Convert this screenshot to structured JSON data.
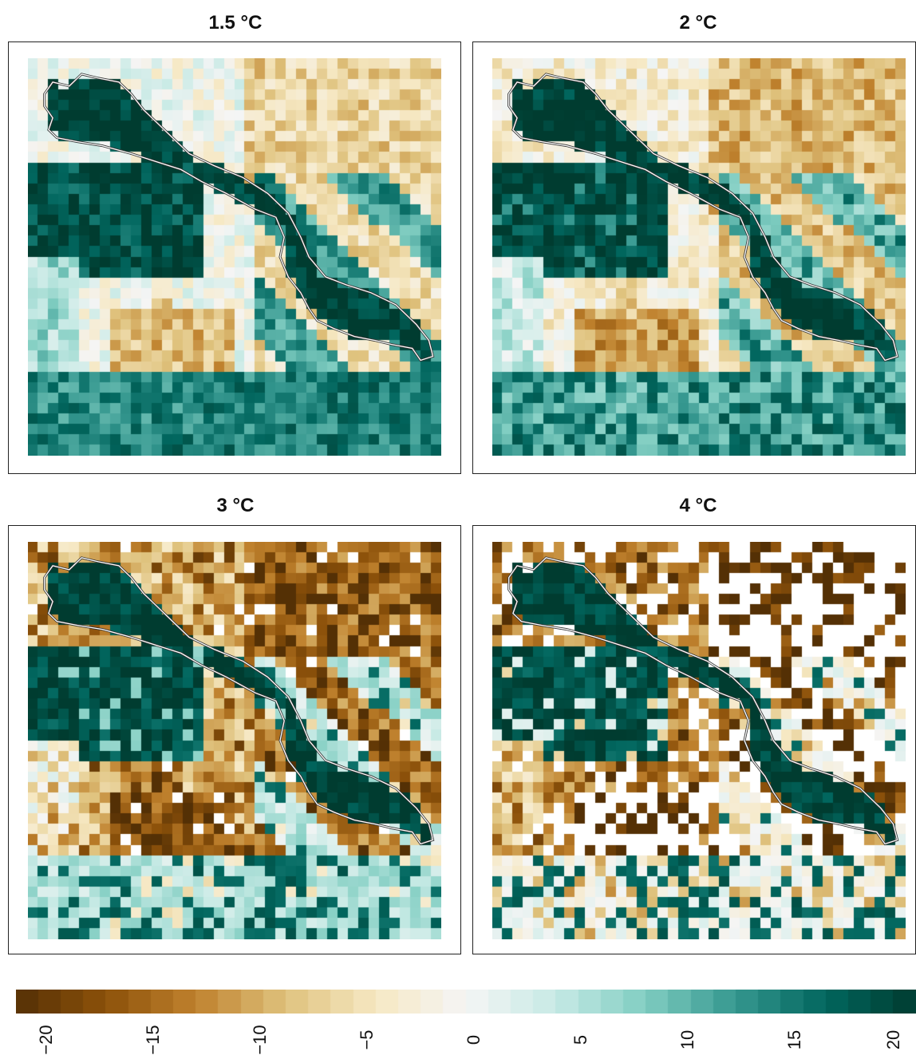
{
  "panels": [
    {
      "title": "1.5 °C",
      "warming": 1.5
    },
    {
      "title": "2 °C",
      "warming": 2
    },
    {
      "title": "3 °C",
      "warming": 3
    },
    {
      "title": "4 °C",
      "warming": 4
    }
  ],
  "legend": {
    "min": -20,
    "max": 20,
    "ticks": [
      "−20",
      "−15",
      "−10",
      "−5",
      "0",
      "5",
      "10",
      "15",
      "20"
    ],
    "colors": [
      "#543005",
      "#8c510a",
      "#bf812d",
      "#dfc27d",
      "#f6e8c3",
      "#f5f5f5",
      "#c7eae5",
      "#80cdc1",
      "#35978f",
      "#01665e",
      "#003c30"
    ]
  },
  "region_outline_color": "#ffffff",
  "missing_color": "#ffffff"
}
